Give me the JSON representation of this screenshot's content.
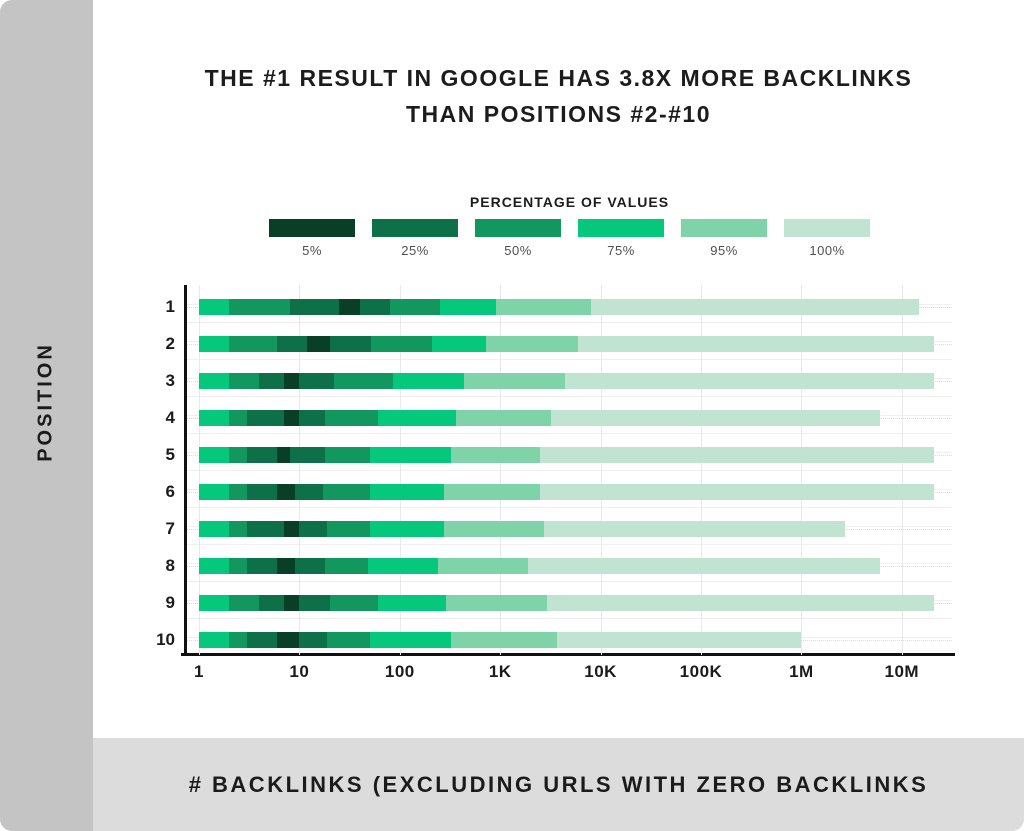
{
  "page": {
    "title_line1": "THE #1 RESULT IN GOOGLE HAS 3.8X MORE BACKLINKS",
    "title_line2": "THAN POSITIONS #2-#10",
    "y_axis_title": "POSITION",
    "x_axis_title": "# BACKLINKS (EXCLUDING URLS WITH ZERO BACKLINKS"
  },
  "legend": {
    "title": "PERCENTAGE OF VALUES",
    "items": [
      {
        "label": "5%",
        "color": "#0a3f27"
      },
      {
        "label": "25%",
        "color": "#0e7048"
      },
      {
        "label": "50%",
        "color": "#12985e"
      },
      {
        "label": "75%",
        "color": "#06c87d"
      },
      {
        "label": "95%",
        "color": "#7fd3a8"
      },
      {
        "label": "100%",
        "color": "#c1e3d2"
      }
    ]
  },
  "colors": {
    "left_band": "#c4c4c4",
    "bottom_band": "#dcdcdc",
    "axis": "#111111",
    "gridline": "#f0f0f0",
    "text": "#1c1c1c"
  },
  "chart_data": {
    "type": "bar",
    "orientation": "horizontal",
    "title": "THE #1 RESULT IN GOOGLE HAS 3.8X MORE BACKLINKS THAN POSITIONS #2-#10",
    "xlabel": "# BACKLINKS (EXCLUDING URLS WITH ZERO BACKLINKS",
    "ylabel": "POSITION",
    "x_scale": "log",
    "x_range": [
      1,
      31600000
    ],
    "x_ticks": [
      "1",
      "10",
      "100",
      "1K",
      "10K",
      "100K",
      "1M",
      "10M"
    ],
    "grid": true,
    "legend_position": "top",
    "segment_percentiles": [
      "75%",
      "50%",
      "25%",
      "5%",
      "25%",
      "50%",
      "75%",
      "95%",
      "100%"
    ],
    "segment_colors": [
      "#06c87d",
      "#12985e",
      "#0e7048",
      "#0a3f27",
      "#0e7048",
      "#12985e",
      "#06c87d",
      "#7fd3a8",
      "#c1e3d2"
    ],
    "categories": [
      "1",
      "2",
      "3",
      "4",
      "5",
      "6",
      "7",
      "8",
      "9",
      "10"
    ],
    "rows": [
      {
        "position": "1",
        "boundaries": [
          1,
          2,
          8,
          25,
          40,
          80,
          250,
          900,
          8000,
          15000000
        ]
      },
      {
        "position": "2",
        "boundaries": [
          1,
          2,
          6,
          12,
          20,
          52,
          210,
          730,
          6000,
          21000000
        ]
      },
      {
        "position": "3",
        "boundaries": [
          1,
          2,
          4,
          7,
          10,
          22,
          85,
          440,
          4400,
          21000000
        ]
      },
      {
        "position": "4",
        "boundaries": [
          1,
          2,
          3,
          7,
          10,
          18,
          60,
          360,
          3200,
          6000000
        ]
      },
      {
        "position": "5",
        "boundaries": [
          1,
          2,
          3,
          6,
          8,
          18,
          50,
          320,
          2500,
          21000000
        ]
      },
      {
        "position": "6",
        "boundaries": [
          1,
          2,
          3,
          6,
          9,
          17,
          50,
          275,
          2500,
          21000000
        ]
      },
      {
        "position": "7",
        "boundaries": [
          1,
          2,
          3,
          7,
          10,
          19,
          50,
          275,
          2700,
          2700000
        ]
      },
      {
        "position": "8",
        "boundaries": [
          1,
          2,
          3,
          6,
          9,
          18,
          48,
          240,
          1900,
          6000000
        ]
      },
      {
        "position": "9",
        "boundaries": [
          1,
          2,
          4,
          7,
          10,
          20,
          60,
          290,
          2900,
          21000000
        ]
      },
      {
        "position": "10",
        "boundaries": [
          1,
          2,
          3,
          6,
          10,
          19,
          50,
          320,
          3700,
          1000000
        ]
      }
    ]
  }
}
